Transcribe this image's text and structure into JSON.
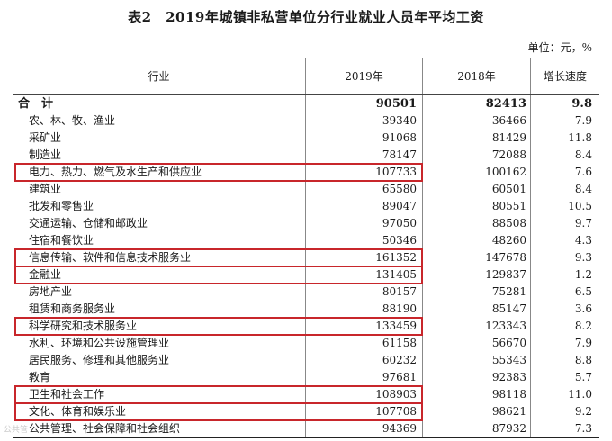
{
  "title": "表2　2019年城镇非私营单位分行业就业人员年平均工资",
  "unit": "单位：元，%",
  "watermark": "公共管",
  "highlight_color": "#c8262b",
  "headers": {
    "industry": "行业",
    "y2019": "2019年",
    "y2018": "2018年",
    "growth": "增长速度"
  },
  "rows": [
    {
      "industry": "合　计",
      "y2019": "90501",
      "y2018": "82413",
      "growth": "9.8",
      "total": true
    },
    {
      "industry": "农、林、牧、渔业",
      "y2019": "39340",
      "y2018": "36466",
      "growth": "7.9"
    },
    {
      "industry": "采矿业",
      "y2019": "91068",
      "y2018": "81429",
      "growth": "11.8"
    },
    {
      "industry": "制造业",
      "y2019": "78147",
      "y2018": "72088",
      "growth": "8.4"
    },
    {
      "industry": "电力、热力、燃气及水生产和供应业",
      "y2019": "107733",
      "y2018": "100162",
      "growth": "7.6",
      "highlighted": true
    },
    {
      "industry": "建筑业",
      "y2019": "65580",
      "y2018": "60501",
      "growth": "8.4"
    },
    {
      "industry": "批发和零售业",
      "y2019": "89047",
      "y2018": "80551",
      "growth": "10.5"
    },
    {
      "industry": "交通运输、仓储和邮政业",
      "y2019": "97050",
      "y2018": "88508",
      "growth": "9.7"
    },
    {
      "industry": "住宿和餐饮业",
      "y2019": "50346",
      "y2018": "48260",
      "growth": "4.3"
    },
    {
      "industry": "信息传输、软件和信息技术服务业",
      "y2019": "161352",
      "y2018": "147678",
      "growth": "9.3",
      "highlighted": true
    },
    {
      "industry": "金融业",
      "y2019": "131405",
      "y2018": "129837",
      "growth": "1.2",
      "highlighted": true
    },
    {
      "industry": "房地产业",
      "y2019": "80157",
      "y2018": "75281",
      "growth": "6.5"
    },
    {
      "industry": "租赁和商务服务业",
      "y2019": "88190",
      "y2018": "85147",
      "growth": "3.6"
    },
    {
      "industry": "科学研究和技术服务业",
      "y2019": "133459",
      "y2018": "123343",
      "growth": "8.2",
      "highlighted": true
    },
    {
      "industry": "水利、环境和公共设施管理业",
      "y2019": "61158",
      "y2018": "56670",
      "growth": "7.9"
    },
    {
      "industry": "居民服务、修理和其他服务业",
      "y2019": "60232",
      "y2018": "55343",
      "growth": "8.8"
    },
    {
      "industry": "教育",
      "y2019": "97681",
      "y2018": "92383",
      "growth": "5.7"
    },
    {
      "industry": "卫生和社会工作",
      "y2019": "108903",
      "y2018": "98118",
      "growth": "11.0",
      "highlighted": true
    },
    {
      "industry": "文化、体育和娱乐业",
      "y2019": "107708",
      "y2018": "98621",
      "growth": "9.2",
      "highlighted": true
    },
    {
      "industry": "公共管理、社会保障和社会组织",
      "y2019": "94369",
      "y2018": "87932",
      "growth": "7.3"
    }
  ]
}
